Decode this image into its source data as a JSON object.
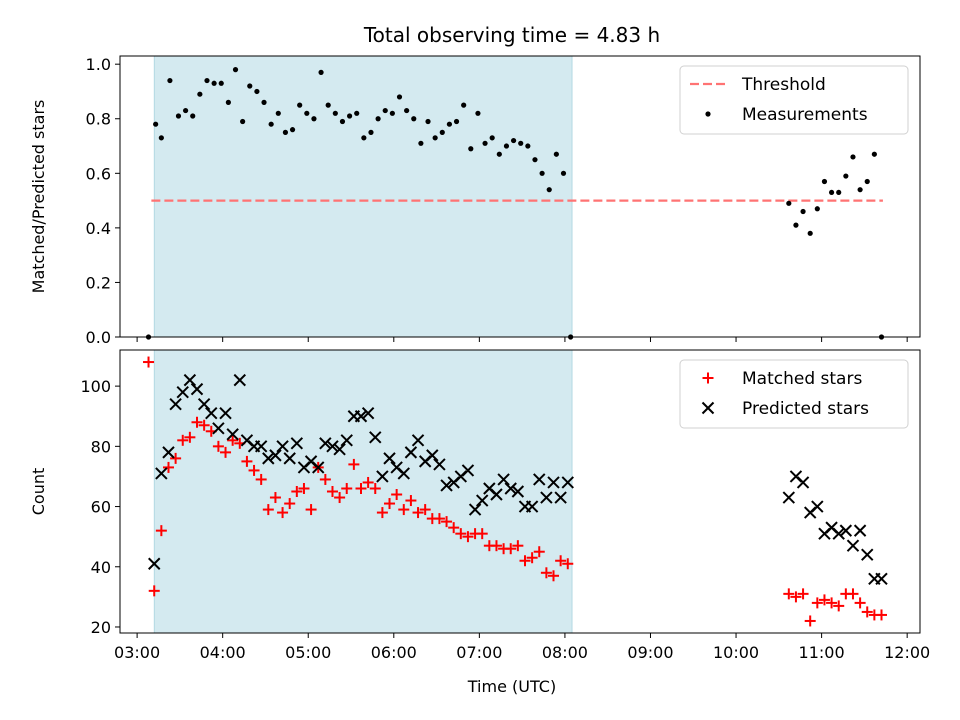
{
  "chart_data": {
    "title": "Total observing time = 4.83 h",
    "xlabel": "Time (UTC)",
    "x_ticks": [
      "03:00",
      "04:00",
      "05:00",
      "06:00",
      "07:00",
      "08:00",
      "09:00",
      "10:00",
      "11:00",
      "12:00"
    ],
    "x_range": [
      "02:48",
      "12:09"
    ],
    "shaded_span": {
      "start": "03:12",
      "end": "08:05",
      "color": "#d4eaf0"
    },
    "panels": [
      {
        "type": "scatter",
        "ylabel": "Matched/Predicted stars",
        "ylim": [
          0,
          1.03
        ],
        "y_ticks": [
          "0.0",
          "0.2",
          "0.4",
          "0.6",
          "0.8",
          "1.0"
        ],
        "legend": {
          "position": "top-right",
          "entries": [
            "Threshold",
            "Measurements"
          ]
        },
        "series": [
          {
            "name": "Threshold",
            "kind": "dashed-line",
            "color": "#ff7373",
            "x": [
              "03:10",
              "11:43"
            ],
            "y": [
              0.5,
              0.5
            ]
          },
          {
            "name": "Measurements",
            "kind": "dots",
            "color": "#000000",
            "x": [
              "03:08",
              "03:13",
              "03:17",
              "03:23",
              "03:29",
              "03:34",
              "03:39",
              "03:44",
              "03:49",
              "03:54",
              "03:59",
              "04:04",
              "04:09",
              "04:14",
              "04:19",
              "04:24",
              "04:29",
              "04:34",
              "04:39",
              "04:44",
              "04:49",
              "04:54",
              "04:59",
              "05:04",
              "05:09",
              "05:14",
              "05:19",
              "05:24",
              "05:29",
              "05:34",
              "05:39",
              "05:44",
              "05:49",
              "05:54",
              "05:59",
              "06:04",
              "06:09",
              "06:14",
              "06:19",
              "06:24",
              "06:29",
              "06:34",
              "06:39",
              "06:44",
              "06:49",
              "06:54",
              "06:59",
              "07:04",
              "07:09",
              "07:14",
              "07:19",
              "07:24",
              "07:29",
              "07:34",
              "07:39",
              "07:44",
              "07:49",
              "07:54",
              "07:59",
              "08:04",
              "10:37",
              "10:42",
              "10:47",
              "10:52",
              "10:57",
              "11:02",
              "11:07",
              "11:12",
              "11:17",
              "11:22",
              "11:27",
              "11:32",
              "11:37",
              "11:42"
            ],
            "y": [
              0.0,
              0.78,
              0.73,
              0.94,
              0.81,
              0.83,
              0.81,
              0.89,
              0.94,
              0.93,
              0.93,
              0.86,
              0.98,
              0.79,
              0.92,
              0.9,
              0.86,
              0.78,
              0.82,
              0.75,
              0.76,
              0.85,
              0.82,
              0.8,
              0.97,
              0.85,
              0.82,
              0.79,
              0.81,
              0.82,
              0.73,
              0.75,
              0.8,
              0.83,
              0.82,
              0.88,
              0.83,
              0.8,
              0.71,
              0.79,
              0.73,
              0.75,
              0.78,
              0.79,
              0.85,
              0.69,
              0.82,
              0.71,
              0.73,
              0.67,
              0.7,
              0.72,
              0.71,
              0.7,
              0.65,
              0.6,
              0.54,
              0.67,
              0.6,
              0.0,
              0.49,
              0.41,
              0.46,
              0.38,
              0.47,
              0.57,
              0.53,
              0.53,
              0.59,
              0.66,
              0.54,
              0.57,
              0.67,
              0.0
            ]
          }
        ]
      },
      {
        "type": "scatter",
        "ylabel": "Count",
        "ylim": [
          18,
          112
        ],
        "y_ticks": [
          "20",
          "40",
          "60",
          "80",
          "100"
        ],
        "legend": {
          "position": "top-right",
          "entries": [
            "Matched stars",
            "Predicted stars"
          ]
        },
        "series": [
          {
            "name": "Matched stars",
            "marker": "+",
            "color": "#ff0000",
            "x": [
              "03:08",
              "03:12",
              "03:17",
              "03:22",
              "03:27",
              "03:32",
              "03:37",
              "03:42",
              "03:47",
              "03:52",
              "03:57",
              "04:02",
              "04:07",
              "04:12",
              "04:17",
              "04:22",
              "04:27",
              "04:32",
              "04:37",
              "04:42",
              "04:47",
              "04:52",
              "04:57",
              "05:02",
              "05:07",
              "05:12",
              "05:17",
              "05:22",
              "05:27",
              "05:32",
              "05:37",
              "05:42",
              "05:47",
              "05:52",
              "05:57",
              "06:02",
              "06:07",
              "06:12",
              "06:17",
              "06:22",
              "06:27",
              "06:32",
              "06:37",
              "06:42",
              "06:47",
              "06:52",
              "06:57",
              "07:02",
              "07:07",
              "07:12",
              "07:17",
              "07:22",
              "07:27",
              "07:32",
              "07:37",
              "07:42",
              "07:47",
              "07:52",
              "07:57",
              "08:02",
              "10:37",
              "10:42",
              "10:47",
              "10:52",
              "10:57",
              "11:02",
              "11:07",
              "11:12",
              "11:17",
              "11:22",
              "11:27",
              "11:32",
              "11:37",
              "11:42"
            ],
            "y": [
              108,
              32,
              52,
              73,
              76,
              82,
              83,
              88,
              87,
              85,
              80,
              78,
              82,
              81,
              75,
              72,
              69,
              59,
              63,
              58,
              61,
              65,
              66,
              59,
              73,
              69,
              65,
              63,
              66,
              74,
              66,
              68,
              66,
              58,
              61,
              64,
              59,
              62,
              58,
              59,
              56,
              56,
              55,
              53,
              51,
              50,
              51,
              51,
              47,
              47,
              46,
              46,
              47,
              42,
              43,
              45,
              38,
              37,
              42,
              41,
              31,
              30,
              31,
              22,
              28,
              29,
              28,
              27,
              31,
              31,
              28,
              25,
              24,
              24
            ]
          },
          {
            "name": "Predicted stars",
            "marker": "x",
            "color": "#000000",
            "x": [
              "03:12",
              "03:17",
              "03:22",
              "03:27",
              "03:32",
              "03:37",
              "03:42",
              "03:47",
              "03:52",
              "03:57",
              "04:02",
              "04:07",
              "04:12",
              "04:17",
              "04:22",
              "04:27",
              "04:32",
              "04:37",
              "04:42",
              "04:47",
              "04:52",
              "04:57",
              "05:02",
              "05:07",
              "05:12",
              "05:17",
              "05:22",
              "05:27",
              "05:32",
              "05:37",
              "05:42",
              "05:47",
              "05:52",
              "05:57",
              "06:02",
              "06:07",
              "06:12",
              "06:17",
              "06:22",
              "06:27",
              "06:32",
              "06:37",
              "06:42",
              "06:47",
              "06:52",
              "06:57",
              "07:02",
              "07:07",
              "07:12",
              "07:17",
              "07:22",
              "07:27",
              "07:32",
              "07:37",
              "07:42",
              "07:47",
              "07:52",
              "07:57",
              "08:02",
              "10:37",
              "10:42",
              "10:47",
              "10:52",
              "10:57",
              "11:02",
              "11:07",
              "11:12",
              "11:17",
              "11:22",
              "11:27",
              "11:32",
              "11:37",
              "11:42"
            ],
            "y": [
              41,
              71,
              78,
              94,
              98,
              102,
              99,
              94,
              91,
              86,
              91,
              84,
              102,
              82,
              80,
              80,
              76,
              77,
              80,
              76,
              81,
              73,
              75,
              73,
              81,
              80,
              79,
              82,
              90,
              90,
              91,
              83,
              70,
              76,
              73,
              71,
              78,
              82,
              75,
              77,
              74,
              67,
              68,
              70,
              72,
              59,
              62,
              66,
              64,
              69,
              66,
              65,
              60,
              60,
              69,
              63,
              68,
              63,
              68,
              63,
              70,
              68,
              58,
              60,
              51,
              53,
              51,
              52,
              47,
              52,
              44,
              36,
              36
            ]
          }
        ]
      }
    ]
  }
}
